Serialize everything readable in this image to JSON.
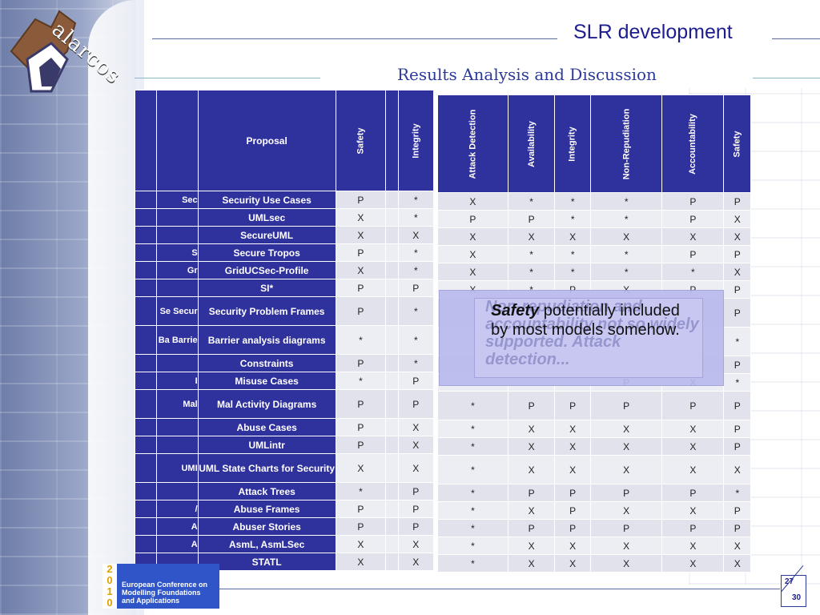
{
  "header": {
    "title": "SLR development",
    "subtitle": "Results Analysis and Discussion",
    "logo_text": "alarcos"
  },
  "left_table": {
    "columns": [
      "Proposal",
      "Safety",
      "Integrity"
    ],
    "rows": [
      {
        "prefix": "Sec",
        "name": "Security Use Cases",
        "safety": "P",
        "integrity": "*"
      },
      {
        "prefix": "",
        "name": "UMLsec",
        "safety": "X",
        "integrity": "*"
      },
      {
        "prefix": "",
        "name": "SecureUML",
        "safety": "X",
        "integrity": "X"
      },
      {
        "prefix": "S",
        "name": "Secure Tropos",
        "safety": "P",
        "integrity": "*"
      },
      {
        "prefix": "Gr",
        "name": "GridUCSec-Profile",
        "safety": "X",
        "integrity": "*"
      },
      {
        "prefix": "",
        "name": "SI*",
        "safety": "P",
        "integrity": "P"
      },
      {
        "prefix": "Se  Secur",
        "name": "Security Problem Frames",
        "safety": "P",
        "integrity": "*"
      },
      {
        "prefix": "Ba  Barrie",
        "name": "Barrier analysis diagrams",
        "safety": "*",
        "integrity": "*"
      },
      {
        "prefix": "",
        "name": "Constraints",
        "safety": "P",
        "integrity": "*"
      },
      {
        "prefix": "I",
        "name": "Misuse Cases",
        "safety": "*",
        "integrity": "P"
      },
      {
        "prefix": "Mal",
        "name": "Mal Activity Diagrams",
        "safety": "P",
        "integrity": "P"
      },
      {
        "prefix": "",
        "name": "Abuse Cases",
        "safety": "P",
        "integrity": "X"
      },
      {
        "prefix": "",
        "name": "UMLintr",
        "safety": "P",
        "integrity": "X"
      },
      {
        "prefix": "UMI",
        "name": "UML State Charts for Security",
        "safety": "X",
        "integrity": "X"
      },
      {
        "prefix": "",
        "name": "Attack Trees",
        "safety": "*",
        "integrity": "P"
      },
      {
        "prefix": "/",
        "name": "Abuse Frames",
        "safety": "P",
        "integrity": "P"
      },
      {
        "prefix": "A",
        "name": "Abuser Stories",
        "safety": "P",
        "integrity": "P"
      },
      {
        "prefix": "A",
        "name": "AsmL, AsmLSec",
        "safety": "X",
        "integrity": "X"
      },
      {
        "prefix": "",
        "name": "STATL",
        "safety": "X",
        "integrity": "X"
      }
    ]
  },
  "right_table": {
    "columns": [
      "Attack Detection",
      "Availability",
      "Integrity",
      "Non-Repudiation",
      "Accountability",
      "Safety"
    ],
    "rows": [
      [
        "X",
        "*",
        "*",
        "*",
        "P",
        "P"
      ],
      [
        "P",
        "P",
        "*",
        "*",
        "P",
        "X"
      ],
      [
        "X",
        "X",
        "X",
        "X",
        "X",
        "X"
      ],
      [
        "X",
        "*",
        "*",
        "*",
        "P",
        "P"
      ],
      [
        "X",
        "*",
        "*",
        "*",
        "*",
        "X"
      ],
      [
        "X",
        "*",
        "P",
        "X",
        "P",
        "P"
      ],
      [
        "",
        "",
        "",
        "",
        "",
        "P"
      ],
      [
        "",
        "",
        "",
        "",
        "",
        "*"
      ],
      [
        "",
        "",
        "",
        "",
        "",
        "P"
      ],
      [
        "",
        "",
        "",
        "P",
        "X",
        "*"
      ],
      [
        "*",
        "P",
        "P",
        "P",
        "P",
        "P"
      ],
      [
        "*",
        "X",
        "X",
        "X",
        "X",
        "P"
      ],
      [
        "*",
        "X",
        "X",
        "X",
        "X",
        "P"
      ],
      [
        "*",
        "X",
        "X",
        "X",
        "X",
        "X"
      ],
      [
        "*",
        "P",
        "P",
        "P",
        "P",
        "*"
      ],
      [
        "*",
        "X",
        "P",
        "X",
        "X",
        "P"
      ],
      [
        "*",
        "P",
        "P",
        "P",
        "P",
        "P"
      ],
      [
        "*",
        "X",
        "X",
        "X",
        "X",
        "X"
      ],
      [
        "*",
        "X",
        "X",
        "X",
        "X",
        "X"
      ]
    ]
  },
  "overlay": {
    "bold_word": "Safety",
    "message": " potentially included by most models somehow.",
    "ghost_text": "Non-repudiation and accountability not so widely supported. Attack detection..."
  },
  "footer": {
    "conf_digits": [
      "2",
      "0",
      "1",
      "0"
    ],
    "conf_lines": [
      "European Conference on",
      "Modelling Foundations",
      "and Applications"
    ],
    "page_current": "27",
    "page_total": "30"
  }
}
